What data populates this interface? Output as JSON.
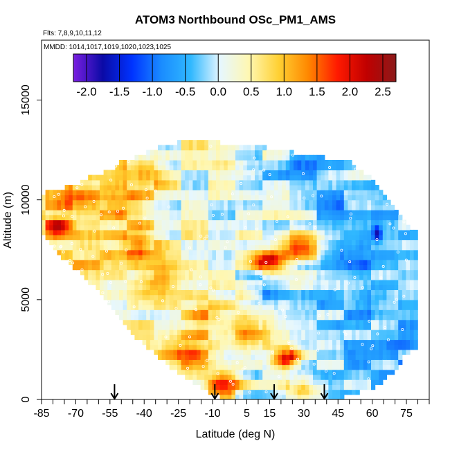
{
  "chart_data": {
    "type": "heatmap",
    "title": "ATOM3 Northbound OSc_PM1_AMS",
    "flights_label": "Flts: 7,8,9,10,11,12",
    "dates_label": "MMDD: 1014,1017,1019,1020,1023,1025",
    "xlabel": "Latitude (deg N)",
    "ylabel": "Altitude (m)",
    "xlim": [
      -85,
      85
    ],
    "ylim": [
      0,
      18000
    ],
    "x_ticks": [
      -85,
      -70,
      -55,
      -40,
      -25,
      -10,
      5,
      15,
      30,
      45,
      60,
      75
    ],
    "x_minor_ticks": [
      -80,
      -75,
      -65,
      -60,
      -50,
      -45,
      -35,
      -30,
      -20,
      -15,
      -5,
      0,
      10,
      20,
      25,
      35,
      40,
      50,
      55,
      65,
      70,
      80,
      85
    ],
    "y_ticks": [
      0,
      5000,
      10000,
      15000
    ],
    "colorbar": {
      "min": -2.2,
      "max": 2.7,
      "ticks": [
        -2.0,
        -1.5,
        -1.0,
        -0.5,
        0.0,
        0.5,
        1.0,
        1.5,
        2.0,
        2.5
      ],
      "tick_labels": [
        "-2.0",
        "-1.5",
        "-1.0",
        "-0.5",
        "0.0",
        "0.5",
        "1.0",
        "1.5",
        "2.0",
        "2.5"
      ],
      "color_stops": [
        "#7a1fe0",
        "#0a0aa6",
        "#0033ff",
        "#1a8cff",
        "#30b8ff",
        "#e6f7ff",
        "#fff7b0",
        "#ffd033",
        "#ff8800",
        "#ff1a00",
        "#c00000",
        "#8b1a1a"
      ]
    },
    "profile_markers_lat": [
      -53,
      -9,
      17,
      39
    ],
    "envelope": {
      "lat": [
        -85,
        -83,
        -80,
        -75,
        -70,
        -65,
        -60,
        -55,
        -50,
        -45,
        -40,
        -35,
        -30,
        -25,
        -20,
        -15,
        -10,
        -5,
        0,
        5,
        10,
        15,
        20,
        25,
        30,
        35,
        40,
        45,
        50,
        55,
        60,
        65,
        70,
        75,
        78
      ],
      "alt_min": [
        8500,
        8000,
        7600,
        7000,
        6500,
        6000,
        5500,
        4600,
        4000,
        3200,
        2800,
        2200,
        1800,
        1300,
        1000,
        600,
        300,
        50,
        0,
        0,
        0,
        0,
        0,
        0,
        0,
        0,
        0,
        50,
        200,
        400,
        600,
        900,
        1500,
        2300,
        2600
      ],
      "alt_max": [
        10200,
        10400,
        10500,
        10600,
        10800,
        11100,
        11300,
        11500,
        11900,
        12100,
        12300,
        12600,
        12800,
        12900,
        13000,
        12950,
        12900,
        12850,
        12800,
        12750,
        12700,
        12600,
        12500,
        12400,
        12300,
        12200,
        12100,
        12050,
        11900,
        11500,
        11000,
        10300,
        9500,
        8800,
        8500
      ]
    },
    "value_features": [
      {
        "lat": -78,
        "alt": 8700,
        "value": 1.9,
        "w_lat": 6,
        "w_alt": 500
      },
      {
        "lat": -68,
        "alt": 10000,
        "value": 1.4,
        "w_lat": 10,
        "w_alt": 700
      },
      {
        "lat": -50,
        "alt": 9800,
        "value": 1.3,
        "w_lat": 12,
        "w_alt": 900
      },
      {
        "lat": -43,
        "alt": 7800,
        "value": 1.8,
        "w_lat": 8,
        "w_alt": 700
      },
      {
        "lat": -40,
        "alt": 11300,
        "value": 1.2,
        "w_lat": 10,
        "w_alt": 700
      },
      {
        "lat": -35,
        "alt": 6000,
        "value": 1.2,
        "w_lat": 10,
        "w_alt": 900
      },
      {
        "lat": -20,
        "alt": 2400,
        "value": 1.4,
        "w_lat": 12,
        "w_alt": 900
      },
      {
        "lat": -12,
        "alt": 4200,
        "value": 1.1,
        "w_lat": 10,
        "w_alt": 900
      },
      {
        "lat": -5,
        "alt": 800,
        "value": 1.6,
        "w_lat": 8,
        "w_alt": 700
      },
      {
        "lat": 5,
        "alt": 3500,
        "value": 1.3,
        "w_lat": 10,
        "w_alt": 900
      },
      {
        "lat": 15,
        "alt": 6900,
        "value": 2.3,
        "w_lat": 7,
        "w_alt": 500
      },
      {
        "lat": 22,
        "alt": 2100,
        "value": 2.2,
        "w_lat": 6,
        "w_alt": 500
      },
      {
        "lat": 28,
        "alt": 7600,
        "value": 1.5,
        "w_lat": 10,
        "w_alt": 700
      },
      {
        "lat": 30,
        "alt": 500,
        "value": 1.4,
        "w_lat": 8,
        "w_alt": 600
      },
      {
        "lat": -60,
        "alt": 7200,
        "value": 0.8,
        "w_lat": 12,
        "w_alt": 900
      },
      {
        "lat": -5,
        "alt": 12300,
        "value": 0.4,
        "w_lat": 12,
        "w_alt": 900
      },
      {
        "lat": 10,
        "alt": 10700,
        "value": -0.3,
        "w_lat": 10,
        "w_alt": 900
      },
      {
        "lat": 12,
        "alt": 5500,
        "value": -0.5,
        "w_lat": 8,
        "w_alt": 700
      },
      {
        "lat": 30,
        "alt": 11800,
        "value": -0.6,
        "w_lat": 14,
        "w_alt": 900
      },
      {
        "lat": 35,
        "alt": 5200,
        "value": -0.4,
        "w_lat": 10,
        "w_alt": 900
      },
      {
        "lat": 45,
        "alt": 9700,
        "value": -0.6,
        "w_lat": 12,
        "w_alt": 900
      },
      {
        "lat": 50,
        "alt": 3000,
        "value": -0.5,
        "w_lat": 10,
        "w_alt": 1200
      },
      {
        "lat": 55,
        "alt": 7000,
        "value": -0.7,
        "w_lat": 10,
        "w_alt": 900
      },
      {
        "lat": 62,
        "alt": 5000,
        "value": -0.8,
        "w_lat": 8,
        "w_alt": 900
      },
      {
        "lat": 62,
        "alt": 8300,
        "value": -2.0,
        "w_lat": 2,
        "w_alt": 400
      },
      {
        "lat": 65,
        "alt": 10500,
        "value": -0.8,
        "w_lat": 6,
        "w_alt": 900
      },
      {
        "lat": 70,
        "alt": 3000,
        "value": -0.6,
        "w_lat": 6,
        "w_alt": 1200
      },
      {
        "lat": 43,
        "alt": 1500,
        "value": -0.3,
        "w_lat": 10,
        "w_alt": 900
      }
    ],
    "background_value": 0.5,
    "south_bias_value": 0.9,
    "north_bias_value": -0.6
  }
}
